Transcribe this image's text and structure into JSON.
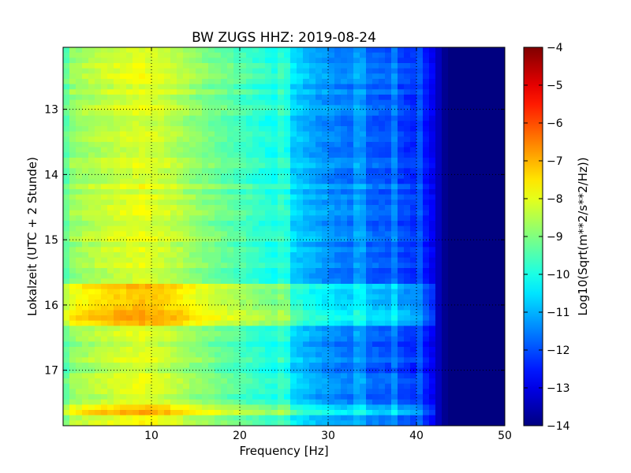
{
  "chart_data": {
    "type": "heatmap",
    "title": "BW ZUGS HHZ: 2019-08-24",
    "xlabel": "Frequency [Hz]",
    "ylabel": "Lokalzeit (UTC + 2 Stunde)",
    "xlim": [
      0,
      50
    ],
    "ylim": [
      12.05,
      17.85
    ],
    "y_inverted": true,
    "xticks": [
      10,
      20,
      30,
      40,
      50
    ],
    "yticks": [
      13,
      14,
      15,
      16,
      17
    ],
    "grid": true,
    "colormap": "jet",
    "colorbar": {
      "label": "Log10(Sqrt(m**2/s**2/Hz))",
      "range": [
        -14,
        -4
      ],
      "ticks": [
        -4,
        -5,
        -6,
        -7,
        -8,
        -9,
        -10,
        -11,
        -12,
        -13,
        -14
      ]
    },
    "frequency_profile": [
      {
        "freq": 0,
        "value": -8.9
      },
      {
        "freq": 3,
        "value": -8.5
      },
      {
        "freq": 6,
        "value": -8.2
      },
      {
        "freq": 9,
        "value": -8.0
      },
      {
        "freq": 12,
        "value": -8.3
      },
      {
        "freq": 15,
        "value": -8.8
      },
      {
        "freq": 18,
        "value": -9.2
      },
      {
        "freq": 21,
        "value": -9.6
      },
      {
        "freq": 24,
        "value": -10.0
      },
      {
        "freq": 26,
        "value": -10.6
      },
      {
        "freq": 28,
        "value": -11.0
      },
      {
        "freq": 30,
        "value": -11.3
      },
      {
        "freq": 32,
        "value": -11.5
      },
      {
        "freq": 34,
        "value": -11.7
      },
      {
        "freq": 36,
        "value": -11.8
      },
      {
        "freq": 38,
        "value": -12.0
      },
      {
        "freq": 40,
        "value": -12.3
      },
      {
        "freq": 41.5,
        "value": -12.6
      },
      {
        "freq": 42.5,
        "value": -13.4
      },
      {
        "freq": 43.5,
        "value": -14.0
      },
      {
        "freq": 50,
        "value": -14.0
      }
    ],
    "time_bands": [
      {
        "start": 12.05,
        "end": 15.65,
        "offset": 0.0
      },
      {
        "start": 15.65,
        "end": 15.75,
        "offset": 1.1
      },
      {
        "start": 15.75,
        "end": 16.1,
        "offset": 0.9
      },
      {
        "start": 16.1,
        "end": 16.2,
        "offset": 1.3
      },
      {
        "start": 16.2,
        "end": 16.35,
        "offset": 1.0
      },
      {
        "start": 16.35,
        "end": 17.5,
        "offset": -0.1
      },
      {
        "start": 17.5,
        "end": 17.62,
        "offset": 0.6
      },
      {
        "start": 17.62,
        "end": 17.72,
        "offset": 1.0
      },
      {
        "start": 17.72,
        "end": 17.85,
        "offset": 0.4
      }
    ],
    "line_frequencies_hz": [
      25,
      33.5,
      37.5,
      40.5
    ]
  }
}
